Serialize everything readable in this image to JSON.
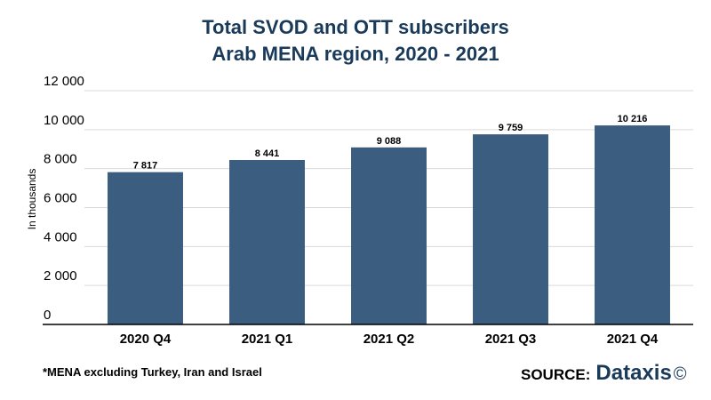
{
  "chart_data": {
    "type": "bar",
    "title": [
      "Total SVOD and OTT subscribers",
      "Arab MENA region, 2020 - 2021"
    ],
    "ylabel": "In thousands",
    "xlabel": "",
    "categories": [
      "2020 Q4",
      "2021 Q1",
      "2021 Q2",
      "2021 Q3",
      "2021 Q4"
    ],
    "values": [
      7817,
      8441,
      9088,
      9759,
      10216
    ],
    "data_labels": [
      "7 817",
      "8 441",
      "9 088",
      "9 759",
      "10 216"
    ],
    "ylim": [
      0,
      12000
    ],
    "yticks": [
      0,
      2000,
      4000,
      6000,
      8000,
      10000,
      12000
    ],
    "ytick_labels": [
      "0",
      "2 000",
      "4 000",
      "6 000",
      "8 000",
      "10 000",
      "12 000"
    ],
    "grid": true,
    "legend": "none",
    "bar_color": "#3b5d7f"
  },
  "footnote": "*MENA excluding Turkey, Iran and Israel",
  "source": {
    "label": "SOURCE:",
    "brand": "Dataxis",
    "copyright": "©"
  }
}
